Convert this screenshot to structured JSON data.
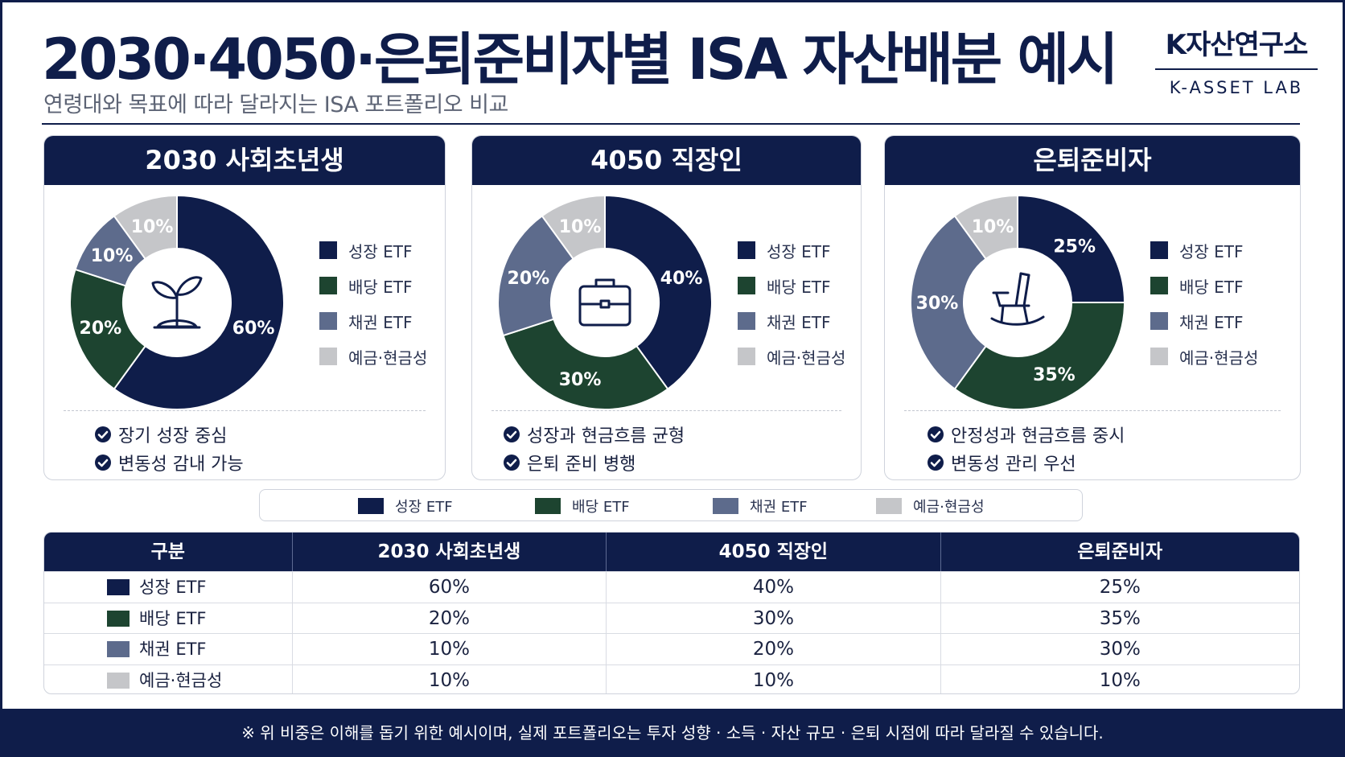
{
  "header": {
    "title": "2030·4050·은퇴준비자별 ISA 자산배분 예시",
    "subtitle": "연령대와 목표에 따라 달라지는 ISA 포트폴리오 비교",
    "brand_main": "K자산연구소",
    "brand_sub": "K-ASSET LAB"
  },
  "colors": {
    "navy": "#0f1d4a",
    "growth": "#0f1d4a",
    "dividend": "#1d4430",
    "bond": "#5d6b8c",
    "cash": "#c5c6c9"
  },
  "legend": {
    "growth": "성장 ETF",
    "dividend": "배당 ETF",
    "bond": "채권 ETF",
    "cash": "예금·현금성"
  },
  "cards": [
    {
      "title": "2030 사회초년생",
      "icon": "sprout-icon",
      "checks": [
        "장기 성장 중심",
        "변동성 감내 가능"
      ]
    },
    {
      "title": "4050 직장인",
      "icon": "briefcase-icon",
      "checks": [
        "성장과 현금흐름 균형",
        "은퇴 준비 병행"
      ]
    },
    {
      "title": "은퇴준비자",
      "icon": "rocking-chair-icon",
      "checks": [
        "안정성과 현금흐름 중시",
        "변동성 관리 우선"
      ]
    }
  ],
  "chart_data": [
    {
      "type": "pie",
      "title": "2030 사회초년생",
      "categories": [
        "성장 ETF",
        "배당 ETF",
        "채권 ETF",
        "예금·현금성"
      ],
      "values": [
        60,
        20,
        10,
        10
      ],
      "labels": [
        "60%",
        "20%",
        "10%",
        "10%"
      ]
    },
    {
      "type": "pie",
      "title": "4050 직장인",
      "categories": [
        "성장 ETF",
        "배당 ETF",
        "채권 ETF",
        "예금·현금성"
      ],
      "values": [
        40,
        30,
        20,
        10
      ],
      "labels": [
        "40%",
        "30%",
        "20%",
        "10%"
      ]
    },
    {
      "type": "pie",
      "title": "은퇴준비자",
      "categories": [
        "성장 ETF",
        "배당 ETF",
        "채권 ETF",
        "예금·현금성"
      ],
      "values": [
        25,
        35,
        30,
        10
      ],
      "labels": [
        "25%",
        "35%",
        "30%",
        "10%"
      ]
    },
    {
      "type": "table",
      "columns": [
        "구분",
        "2030 사회초년생",
        "4050 직장인",
        "은퇴준비자"
      ],
      "rows": [
        [
          "성장 ETF",
          "60%",
          "40%",
          "25%"
        ],
        [
          "배당 ETF",
          "20%",
          "30%",
          "35%"
        ],
        [
          "채권 ETF",
          "10%",
          "20%",
          "30%"
        ],
        [
          "예금·현금성",
          "10%",
          "10%",
          "10%"
        ]
      ]
    }
  ],
  "footer": "※ 위 비중은 이해를 돕기 위한 예시이며, 실제 포트폴리오는 투자 성향 · 소득 · 자산  규모 · 은퇴 시점에 따라 달라질 수 있습니다."
}
